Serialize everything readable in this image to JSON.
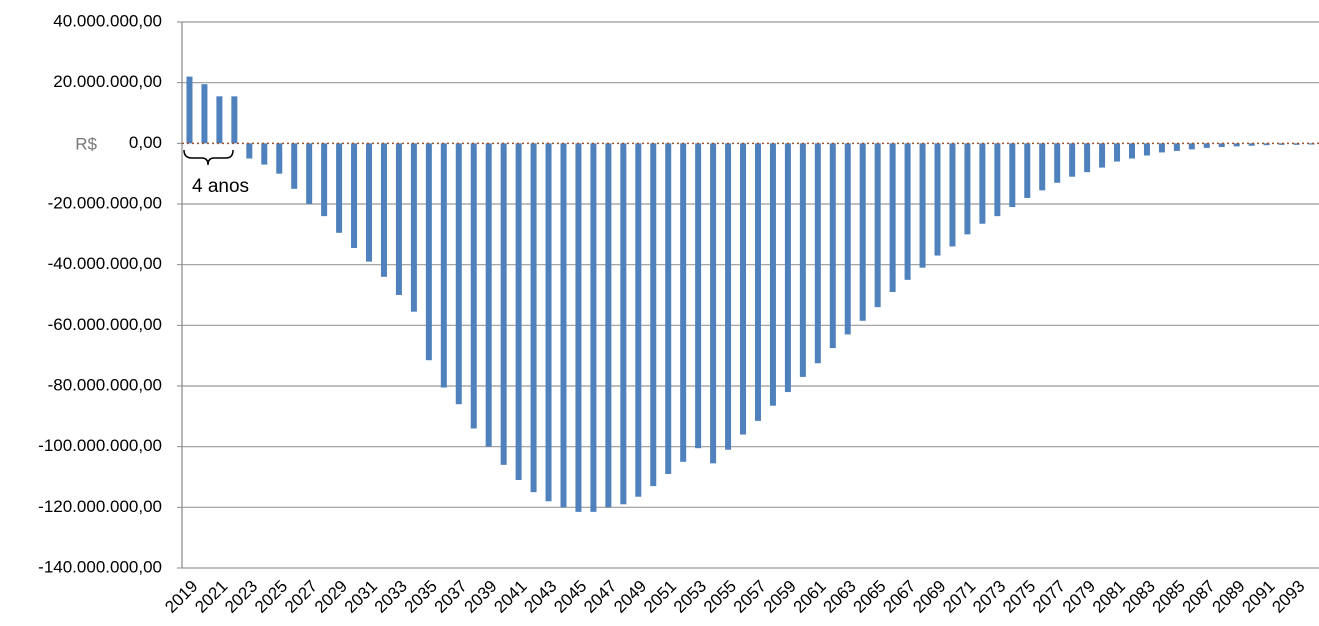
{
  "chart_data": {
    "type": "bar",
    "y_label": "R$",
    "annotation": "4 anos",
    "color": "#4f81bd",
    "grid": true,
    "categories": [
      "2019",
      null,
      "2021",
      null,
      "2023",
      null,
      "2025",
      null,
      "2027",
      null,
      "2029",
      null,
      "2031",
      null,
      "2033",
      null,
      "2035",
      null,
      "2037",
      null,
      "2039",
      null,
      "2041",
      null,
      "2043",
      null,
      "2045",
      null,
      "2047",
      null,
      "2049",
      null,
      "2051",
      null,
      "2053",
      null,
      "2055",
      null,
      "2057",
      null,
      "2059",
      null,
      "2061",
      null,
      "2063",
      null,
      "2065",
      null,
      "2067",
      null,
      "2069",
      null,
      "2071",
      null,
      "2073",
      null,
      "2075",
      null,
      "2077",
      null,
      "2079",
      null,
      "2081",
      null,
      "2083",
      null,
      "2085",
      null,
      "2087",
      null,
      "2089",
      null,
      "2091",
      null,
      "2093",
      null
    ],
    "values": [
      22000000,
      19500000,
      15500000,
      15500000,
      -5000000,
      -7000000,
      -10000000,
      -15000000,
      -20000000,
      -24000000,
      -29500000,
      -34500000,
      -39000000,
      -44000000,
      -50000000,
      -55500000,
      -71500000,
      -80500000,
      -86000000,
      -94000000,
      -100000000,
      -106000000,
      -111000000,
      -115000000,
      -118000000,
      -120000000,
      -121500000,
      -121500000,
      -120000000,
      -119000000,
      -116500000,
      -113000000,
      -109000000,
      -105000000,
      -100500000,
      -105500000,
      -101000000,
      -96000000,
      -91500000,
      -86500000,
      -82000000,
      -77000000,
      -72500000,
      -67500000,
      -63000000,
      -58500000,
      -54000000,
      -49000000,
      -45000000,
      -41000000,
      -37000000,
      -34000000,
      -30000000,
      -26500000,
      -24000000,
      -21000000,
      -18000000,
      -15500000,
      -13000000,
      -11000000,
      -9500000,
      -8000000,
      -6000000,
      -5000000,
      -4000000,
      -3000000,
      -2500000,
      -2000000,
      -1500000,
      -1200000,
      -1000000,
      -800000,
      -600000,
      -500000,
      -500000,
      -400000
    ],
    "ylim": [
      -140000000,
      40000000
    ],
    "yticks": [
      {
        "value": -140000000,
        "label": "-140.000.000,00"
      },
      {
        "value": -120000000,
        "label": "-120.000.000,00"
      },
      {
        "value": -100000000,
        "label": "-100.000.000,00"
      },
      {
        "value": -80000000,
        "label": "-80.000.000,00"
      },
      {
        "value": -60000000,
        "label": "-60.000.000,00"
      },
      {
        "value": -40000000,
        "label": "-40.000.000,00"
      },
      {
        "value": -20000000,
        "label": "-20.000.000,00"
      },
      {
        "value": 0,
        "label": "0,00"
      },
      {
        "value": 20000000,
        "label": "20.000.000,00"
      },
      {
        "value": 40000000,
        "label": "40.000.000,00"
      }
    ]
  }
}
